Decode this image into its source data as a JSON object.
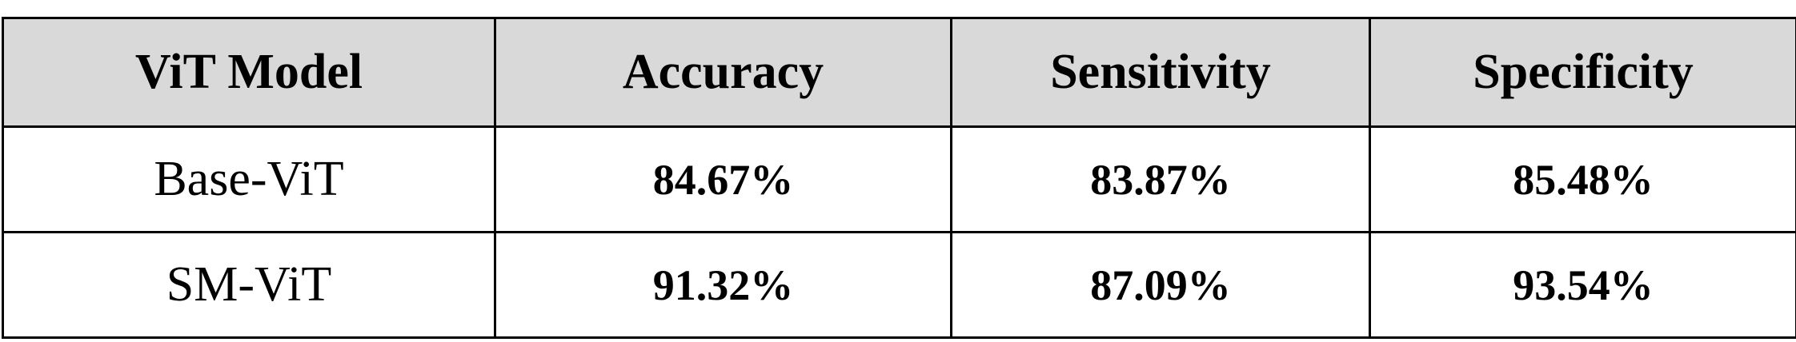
{
  "table": {
    "headers": [
      "ViT Model",
      "Accuracy",
      "Sensitivity",
      "Specificity"
    ],
    "rows": [
      [
        "Base-ViT",
        "84.67%",
        "83.87%",
        "85.48%"
      ],
      [
        "SM-ViT",
        "91.32%",
        "87.09%",
        "93.54%"
      ]
    ]
  }
}
